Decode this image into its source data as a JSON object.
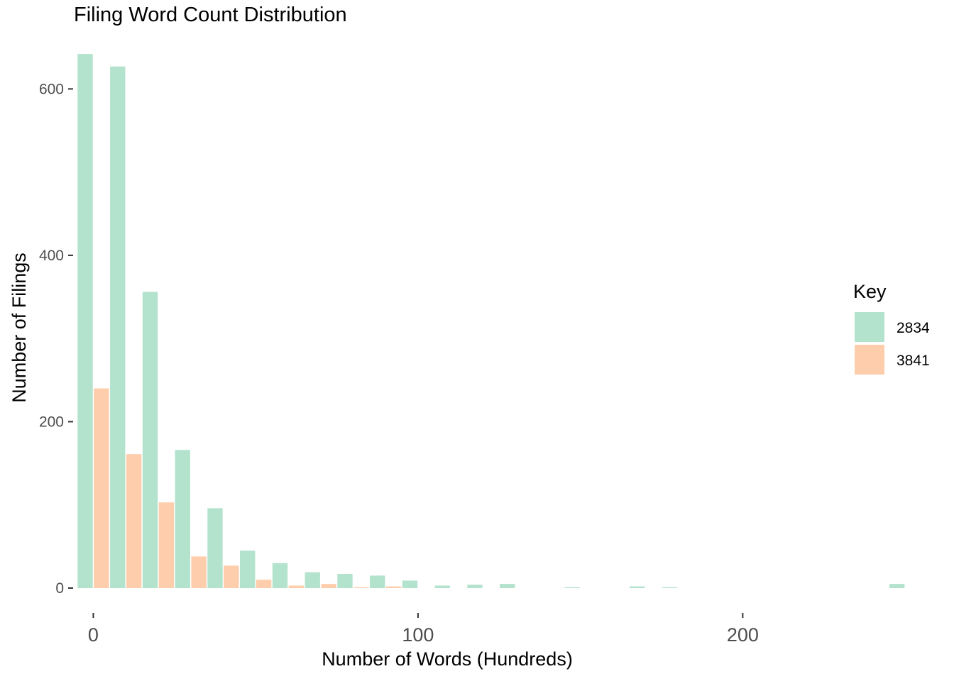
{
  "chart_data": {
    "type": "bar",
    "title": "Filing Word Count Distribution",
    "xlabel": "Number of Words (Hundreds)",
    "ylabel": "Number of Filings",
    "xlim": [
      -6,
      262
    ],
    "ylim": [
      0,
      660
    ],
    "x_ticks": [
      0,
      100,
      200
    ],
    "y_ticks": [
      0,
      200,
      400,
      600
    ],
    "bin_width": 10,
    "grid": false,
    "legend": {
      "title": "Key",
      "position": "right"
    },
    "x": [
      0,
      10,
      20,
      30,
      40,
      50,
      60,
      70,
      80,
      90,
      100,
      110,
      120,
      130,
      140,
      150,
      160,
      170,
      180,
      190,
      200,
      210,
      220,
      230,
      240,
      250
    ],
    "series": [
      {
        "name": "2834",
        "color": "#b3e2cd",
        "values": [
          642,
          627,
          356,
          166,
          96,
          45,
          30,
          19,
          17,
          15,
          9,
          3,
          4,
          5,
          0,
          1,
          0,
          2,
          1,
          0,
          0,
          0,
          0,
          0,
          0,
          5
        ]
      },
      {
        "name": "3841",
        "color": "#fdcdac",
        "values": [
          240,
          161,
          103,
          38,
          27,
          10,
          3,
          5,
          1,
          2,
          0,
          0,
          0,
          0,
          0,
          0,
          0,
          0,
          0,
          0,
          0,
          0,
          0,
          0,
          0,
          0
        ]
      }
    ]
  }
}
